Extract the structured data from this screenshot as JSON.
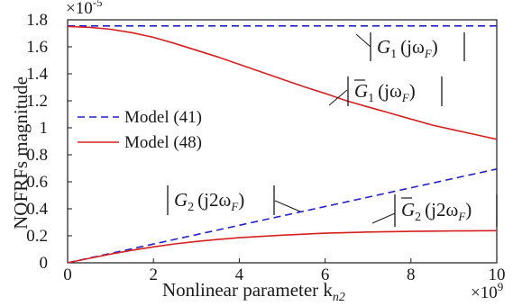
{
  "chart_data": {
    "type": "line",
    "xlabel": "Nonlinear parameter k",
    "xlabel_sub": "n2",
    "ylabel": "NOFRFs magnitude",
    "x_multiplier": "×10",
    "x_multiplier_exp": "9",
    "y_multiplier": "×10",
    "y_multiplier_exp": "-5",
    "xlim": [
      0,
      10
    ],
    "ylim": [
      0,
      1.8
    ],
    "xticks": [
      0,
      2,
      4,
      6,
      8,
      10
    ],
    "xtick_labels": [
      "0",
      "2",
      "4",
      "6",
      "8",
      "10"
    ],
    "yticks": [
      0,
      0.2,
      0.4,
      0.6,
      0.8,
      1.0,
      1.2,
      1.4,
      1.6,
      1.8
    ],
    "ytick_labels": [
      "0",
      "0.2",
      "0.4",
      "0.6",
      "0.8",
      "1",
      "1.2",
      "1.4",
      "1.6",
      "1.8"
    ],
    "grid": false,
    "legend_position": "left",
    "legend": [
      {
        "label": "Model (41)",
        "color": "#2222cc",
        "style": "dashed"
      },
      {
        "label": "Model (48)",
        "color": "#d62020",
        "style": "solid"
      }
    ],
    "series": [
      {
        "model": "Model (41)",
        "color": "#2222cc",
        "style": "dashed",
        "x": [
          0,
          10
        ],
        "y": [
          1.755,
          1.755
        ]
      },
      {
        "model": "Model (48)",
        "color": "#d62020",
        "style": "solid",
        "x": [
          0,
          0.5,
          1,
          1.5,
          2,
          2.5,
          3,
          3.5,
          4,
          4.5,
          5,
          5.5,
          6,
          6.5,
          7,
          7.5,
          8,
          8.5,
          9,
          9.5,
          10
        ],
        "y": [
          1.75,
          1.745,
          1.73,
          1.705,
          1.67,
          1.625,
          1.575,
          1.525,
          1.47,
          1.415,
          1.36,
          1.305,
          1.255,
          1.2,
          1.155,
          1.11,
          1.065,
          1.02,
          0.985,
          0.95,
          0.915
        ]
      },
      {
        "model": "Model (41)",
        "color": "#2222cc",
        "style": "dashed",
        "x": [
          0,
          10
        ],
        "y": [
          0.0,
          0.695
        ]
      },
      {
        "model": "Model (48)",
        "color": "#d62020",
        "style": "solid",
        "x": [
          0,
          0.5,
          1,
          1.5,
          2,
          2.5,
          3,
          3.5,
          4,
          5,
          6,
          7,
          8,
          9,
          10
        ],
        "y": [
          0.0,
          0.033,
          0.065,
          0.093,
          0.118,
          0.14,
          0.158,
          0.173,
          0.186,
          0.205,
          0.219,
          0.228,
          0.233,
          0.236,
          0.238
        ]
      }
    ],
    "annotations": [
      {
        "kind": "G1",
        "text_pre": "G",
        "sub": "1",
        "arg": "(jω",
        "arg_sub": "F",
        "arg_close": ")",
        "bar": false
      },
      {
        "kind": "G1bar",
        "text_pre": "G",
        "sub": "1",
        "arg": "(jω",
        "arg_sub": "F",
        "arg_close": ")",
        "bar": true
      },
      {
        "kind": "G2",
        "text_pre": "G",
        "sub": "2",
        "arg": "(j2ω",
        "arg_sub": "F",
        "arg_close": ")",
        "bar": false
      },
      {
        "kind": "G2bar",
        "text_pre": "G",
        "sub": "2",
        "arg": "(j2ω",
        "arg_sub": "F",
        "arg_close": ")",
        "bar": true
      }
    ]
  }
}
